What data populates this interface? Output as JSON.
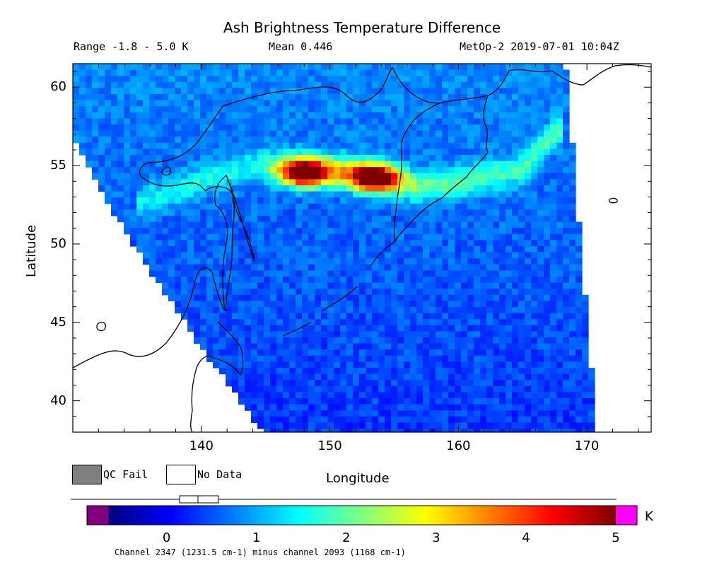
{
  "title": "Ash Brightness Temperature Difference",
  "range_text": "Range -1.8 - 5.0 K",
  "mean_text": "Mean 0.446",
  "satellite_text": "MetOp-2 2019-07-01 10:04Z",
  "legend": {
    "qc_fail": "QC Fail",
    "no_data": "No Data",
    "qc_color": "#7f7f7f"
  },
  "footnote": "Channel 2347 (1231.5 cm-1) minus channel 2093 (1168 cm-1)",
  "colorbar": {
    "unit": "K",
    "range": [
      -0.9,
      5.25
    ],
    "tick_labels": [
      "0",
      "1",
      "2",
      "3",
      "4",
      "5"
    ],
    "under_color": "#800080",
    "over_color": "#ff00ff",
    "colors": [
      "#000080",
      "#0000ff",
      "#0080ff",
      "#00ffff",
      "#80ff80",
      "#ffff00",
      "#ff8000",
      "#ff0000",
      "#800000"
    ]
  },
  "chart_data": {
    "type": "heatmap",
    "title": "Ash Brightness Temperature Difference",
    "xlabel": "Longitude",
    "ylabel": "Latitude",
    "xlim": [
      130,
      175
    ],
    "ylim": [
      38,
      61.5
    ],
    "x_ticks": [
      140,
      150,
      160,
      170
    ],
    "y_ticks": [
      40,
      45,
      50,
      55,
      60
    ],
    "mean": 0.446,
    "value_range": [
      -1.8,
      5.0
    ],
    "plume_band": [
      {
        "lon": 135,
        "lat": 52.5,
        "value": 2.0
      },
      {
        "lon": 140,
        "lat": 54.0,
        "value": 2.2
      },
      {
        "lon": 144,
        "lat": 55.0,
        "value": 2.0
      },
      {
        "lon": 148,
        "lat": 54.8,
        "value": 4.5
      },
      {
        "lon": 153,
        "lat": 54.4,
        "value": 4.7
      },
      {
        "lon": 157,
        "lat": 53.6,
        "value": 3.0
      },
      {
        "lon": 161,
        "lat": 54.0,
        "value": 2.8
      },
      {
        "lon": 165,
        "lat": 54.8,
        "value": 2.6
      },
      {
        "lon": 168,
        "lat": 57.5,
        "value": 2.8
      }
    ],
    "hotspots": [
      {
        "lon": 148.0,
        "lat": 54.5,
        "value": 4.6
      },
      {
        "lon": 153.5,
        "lat": 54.2,
        "value": 4.8
      }
    ]
  }
}
